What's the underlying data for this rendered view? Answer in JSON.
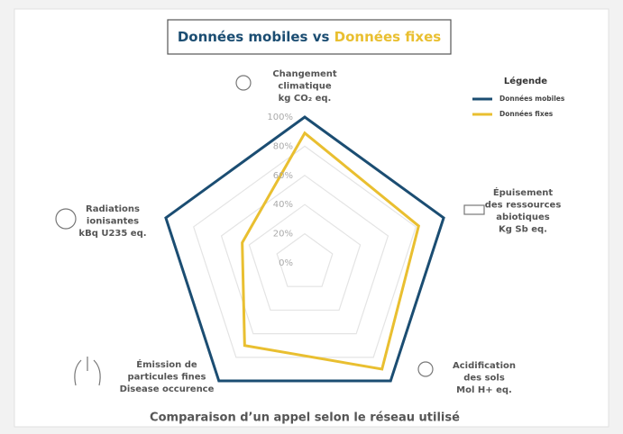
{
  "chart_data": {
    "type": "radar",
    "title": [
      "Données mobiles",
      "vs",
      "Données fixes"
    ],
    "subtitle": "Comparaison d’un appel selon le réseau utilisé",
    "legend_title": "Légende",
    "categories": [
      [
        "Changement",
        "climatique",
        "kg CO₂ eq."
      ],
      [
        "Épuisement",
        "des ressources",
        "abiotiques",
        "Kg Sb eq."
      ],
      [
        "Acidification",
        "des sols",
        "Mol H+ eq."
      ],
      [
        "Émission de",
        "particules fines",
        "Disease occurence"
      ],
      [
        "Radiations",
        "ionisantes",
        "kBq U235 eq."
      ]
    ],
    "series": [
      {
        "name": "Données mobiles",
        "color": "#1b4d72",
        "values": [
          100,
          100,
          100,
          100,
          100
        ]
      },
      {
        "name": "Données fixes",
        "color": "#e9bf30",
        "values": [
          89,
          82,
          90,
          70,
          45
        ]
      }
    ],
    "rlim": [
      0,
      100
    ],
    "rticks": [
      {
        "value": 0,
        "label": "0%"
      },
      {
        "value": 20,
        "label": "20%"
      },
      {
        "value": 40,
        "label": "40%"
      },
      {
        "value": 60,
        "label": "60%"
      },
      {
        "value": 80,
        "label": "80%"
      },
      {
        "value": 100,
        "label": "100%"
      }
    ],
    "grid": true,
    "legend": "upper right"
  }
}
